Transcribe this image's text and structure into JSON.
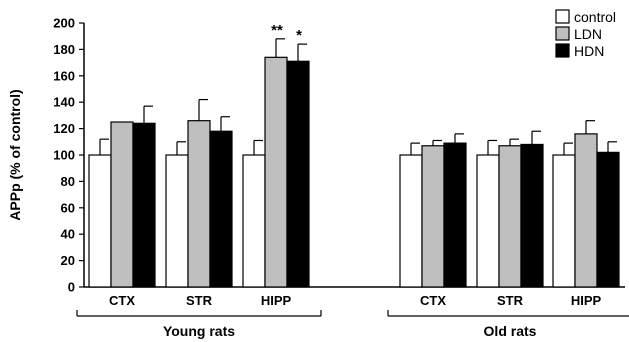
{
  "chart_data": {
    "type": "bar",
    "ylabel": "APPp (% of control)",
    "ylim": [
      0,
      200
    ],
    "yticks": [
      0,
      20,
      40,
      60,
      80,
      100,
      120,
      140,
      160,
      180,
      200
    ],
    "groups": [
      {
        "label": "Young rats",
        "categories": [
          "CTX",
          "STR",
          "HIPP"
        ]
      },
      {
        "label": "Old rats",
        "categories": [
          "CTX",
          "STR",
          "HIPP"
        ]
      }
    ],
    "series": [
      {
        "name": "control",
        "color": "#ffffff",
        "values": [
          100,
          100,
          100,
          100,
          100,
          100
        ],
        "errors": [
          12,
          10,
          11,
          9,
          11,
          9
        ],
        "significance": [
          "",
          "",
          "",
          "",
          "",
          ""
        ]
      },
      {
        "name": "LDN",
        "color": "#bfbfbf",
        "values": [
          125,
          126,
          174,
          107,
          107,
          116
        ],
        "errors": [
          0,
          16,
          14,
          4,
          5,
          10
        ],
        "significance": [
          "",
          "",
          "**",
          "",
          "",
          ""
        ]
      },
      {
        "name": "HDN",
        "color": "#000000",
        "values": [
          124,
          118,
          171,
          109,
          108,
          102
        ],
        "errors": [
          13,
          11,
          13,
          7,
          10,
          8
        ],
        "significance": [
          "",
          "",
          "*",
          "",
          "",
          ""
        ]
      }
    ],
    "legend_position": "top-right",
    "grid": false
  }
}
